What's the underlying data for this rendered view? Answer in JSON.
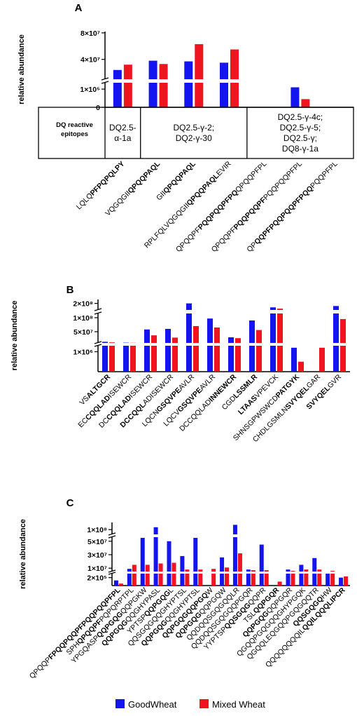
{
  "chart_data": [
    {
      "type": "bar",
      "panel": "A",
      "y_label": "relative abundance",
      "epitope_label": [
        "DQ reactive",
        "epitopes"
      ],
      "epitopes": [
        [
          "DQ2.5-",
          "α-1a"
        ],
        [
          "DQ2.5-γ-2;",
          "DQ2-γ-30"
        ],
        [
          "DQ2.5-γ-4c;",
          "DQ2.5-γ-5;",
          "DQ2.5-γ;",
          "DQ8-γ-1a"
        ]
      ],
      "categories": [
        [
          {
            "text": "LQLQ"
          },
          {
            "text": "PFPQPQLPY",
            "bold": true
          }
        ],
        [
          {
            "text": "VQGQGII"
          },
          {
            "text": "QPQQPAQL",
            "bold": true
          }
        ],
        [
          {
            "text": "GII"
          },
          {
            "text": "QPQQPAQL",
            "bold": true
          }
        ],
        [
          {
            "text": "RPLFQLVQGQGII"
          },
          {
            "text": "QPQQPAQL",
            "bold": true
          },
          {
            "text": "EVIR"
          }
        ],
        [
          {
            "text": "QPQQPF"
          },
          {
            "text": "PQQPQQPFPQ",
            "bold": true
          },
          {
            "text": "QPQQPFPL"
          }
        ],
        [
          {
            "text": "QPQQPF"
          },
          {
            "text": "PQQPQQPF",
            "bold": true
          },
          {
            "text": "PQQPQQPFPL"
          }
        ],
        [
          {
            "text": "QP"
          },
          {
            "text": "QQPFPQQPQQPFPQQ",
            "bold": true
          },
          {
            "text": "PQQPFPL"
          }
        ]
      ],
      "series": [
        {
          "name": "GoodWheat",
          "color": "#1414f0",
          "values": [
            24000000,
            38000000,
            37000000,
            35000000,
            null,
            110000,
            null
          ]
        },
        {
          "name": "Mixed Wheat",
          "color": "#f01420",
          "values": [
            32000000,
            33000000,
            63000000,
            55000000,
            null,
            45000,
            null
          ]
        }
      ],
      "ylim_segments": [
        [
          0,
          135000
        ],
        [
          10000000,
          82000000
        ]
      ],
      "yticks": [
        0,
        {
          "value": 100000,
          "label": "1×10⁵"
        },
        {
          "value": 40000000,
          "label": "4×10⁷"
        },
        {
          "value": 80000000,
          "label": "8×10⁷"
        }
      ]
    },
    {
      "type": "bar",
      "panel": "B",
      "y_label": "relative abundance",
      "categories": [
        [
          {
            "text": "VS"
          },
          {
            "text": "ALTGCR",
            "bold": true
          }
        ],
        [
          {
            "text": "EC"
          },
          {
            "text": "CQQLAD",
            "bold": true
          },
          {
            "text": "ISEWCR"
          }
        ],
        [
          {
            "text": "DC"
          },
          {
            "text": "CQQLAD",
            "bold": true
          },
          {
            "text": "ISEWCR"
          }
        ],
        [
          {
            "text": "DCCQQL",
            "bold": true
          },
          {
            "text": "ADISEWCR"
          }
        ],
        [
          {
            "text": "LQCN"
          },
          {
            "text": "GSQVPE",
            "bold": true
          },
          {
            "text": "AVLR"
          }
        ],
        [
          {
            "text": "LQCV"
          },
          {
            "text": "GSQVPE",
            "bold": true
          },
          {
            "text": "AVLR"
          }
        ],
        [
          {
            "text": "DCCQQLAD"
          },
          {
            "text": "INNEWCR",
            "bold": true
          }
        ],
        [
          {
            "text": "CGD"
          },
          {
            "text": "LSSMLR",
            "bold": true
          }
        ],
        [
          {
            "text": "LTAAS",
            "bold": true
          },
          {
            "text": "VPEVCK"
          }
        ],
        [
          {
            "text": "SHNSGPWSWCD"
          },
          {
            "text": "PATGYK",
            "bold": true
          }
        ],
        [
          {
            "text": "CHDLGSMLN"
          },
          {
            "text": "SVYQEL",
            "bold": true
          },
          {
            "text": "GAR"
          }
        ],
        [
          {
            "text": "SVYQEL",
            "bold": true
          },
          {
            "text": "GVR"
          }
        ]
      ],
      "series": [
        {
          "name": "GoodWheat",
          "color": "#1414f0",
          "values": [
            14000000,
            11000000,
            58000000,
            60000000,
            200000000,
            97000000,
            30000000,
            90000000,
            185000000,
            1200000,
            null,
            190000000
          ]
        },
        {
          "name": "Mixed Wheat",
          "color": "#f01420",
          "values": [
            12000000,
            10500000,
            37000000,
            29000000,
            70000000,
            65000000,
            27000000,
            56000000,
            180000000,
            500000,
            1200000,
            95000000
          ]
        }
      ],
      "ylim_segments": [
        [
          0,
          1300000
        ],
        [
          10000000,
          115000000
        ],
        [
          175000000,
          215000000
        ]
      ],
      "yticks": [
        {
          "value": 1000000,
          "label": "1×10⁶"
        },
        {
          "value": 50000000,
          "label": "5×10⁷"
        },
        {
          "value": 100000000,
          "label": "1×10⁸"
        },
        {
          "value": 200000000,
          "label": "2×10⁸"
        }
      ]
    },
    {
      "type": "bar",
      "panel": "C",
      "y_label": "relative abundance",
      "legend": "bottom",
      "categories": [
        [
          {
            "text": "QPQQP"
          },
          {
            "text": "FPQQPQQPFPQQPQQPFPL",
            "bold": true
          }
        ],
        [
          {
            "text": "SPH"
          },
          {
            "text": "QPQQPF",
            "bold": true
          },
          {
            "text": "PQPQRPTPL"
          }
        ],
        [
          {
            "text": "YPGQASP"
          },
          {
            "text": "QQPGQG",
            "bold": true
          },
          {
            "text": "QQPGKW"
          }
        ],
        [
          {
            "text": "QQPGQG",
            "bold": true
          },
          {
            "text": "QQGHYPASL"
          }
        ],
        [
          {
            "text": "YPTSP"
          },
          {
            "text": "QQPGQG",
            "bold": true
          },
          {
            "text": "L"
          }
        ],
        [
          {
            "text": "QQSGQGQQGHYPTSL"
          }
        ],
        [
          {
            "text": "QQPGQG",
            "bold": true
          },
          {
            "text": "QQGHYPTSL"
          }
        ],
        [
          {
            "text": "QQPGQGQQPGQ",
            "bold": true
          },
          {
            "text": "W"
          }
        ],
        [
          {
            "text": "QQPGQG",
            "bold": true
          },
          {
            "text": "QQPGQW"
          }
        ],
        [
          {
            "text": "QQDQQSGQGQQLR"
          }
        ],
        [
          {
            "text": "QQDQQSGQGQQPGQR"
          }
        ],
        [
          {
            "text": "YYPTSP"
          },
          {
            "text": "QQSGQG",
            "bold": true
          },
          {
            "text": "QQPR"
          }
        ],
        [
          {
            "text": "TSL"
          },
          {
            "text": "QQPGQR",
            "bold": true
          }
        ],
        [
          {
            "text": "QQPGQG",
            "bold": true
          },
          {
            "text": "QQPGQR"
          }
        ],
        [
          {
            "text": "QGQQPGQGQQGHYPGQK"
          }
        ],
        [
          {
            "text": "QGQQLEQGQQPGQGQQTR"
          }
        ],
        [
          {
            "text": "QQSGQGQ",
            "bold": true
          },
          {
            "text": "HW"
          }
        ],
        [
          {
            "text": "QQQQQQQQIL"
          },
          {
            "text": "QQILQQQLIPCR",
            "bold": true
          }
        ]
      ],
      "series": [
        {
          "name": "GoodWheat",
          "color": "#1414f0",
          "values": [
            130000,
            9000000,
            55000000,
            110000000,
            50000000,
            28000000,
            55000000,
            null,
            26000000,
            120000000,
            8000000,
            45000000,
            null,
            8000000,
            15000000,
            25000000,
            5000000,
            200000
          ]
        },
        {
          "name": "Mixed Wheat",
          "color": "#f01420",
          "values": [
            50000,
            15000000,
            15000000,
            17000000,
            18000000,
            8000000,
            8000000,
            9000000,
            11000000,
            32000000,
            7000000,
            7000000,
            100000,
            6000000,
            8000000,
            8000000,
            6000000,
            230000
          ]
        }
      ],
      "ylim_segments": [
        [
          0,
          300000
        ],
        [
          5000000,
          56000000
        ],
        [
          80000000,
          130000000
        ]
      ],
      "yticks": [
        {
          "value": 200000,
          "label": "2×10⁵"
        },
        {
          "value": 10000000,
          "label": "1×10⁷"
        },
        {
          "value": 30000000,
          "label": "3×10⁷"
        },
        {
          "value": 50000000,
          "label": "5×10⁷"
        },
        {
          "value": 100000000,
          "label": "1×10⁸"
        }
      ]
    }
  ]
}
